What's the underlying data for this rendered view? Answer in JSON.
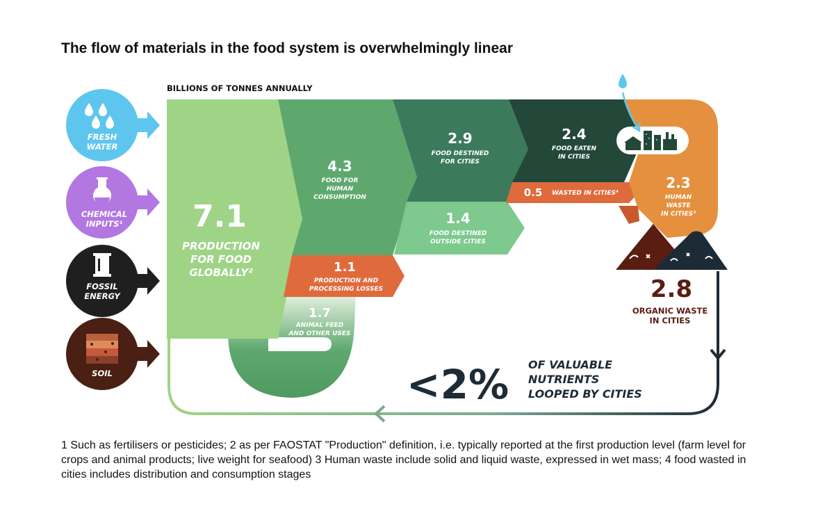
{
  "title": "The flow of materials in the food system is overwhelmingly linear",
  "units_label": "BILLIONS OF TONNES ANNUALLY",
  "inputs": [
    {
      "label_line1": "FRESH",
      "label_line2": "WATER",
      "icon": "water-drops-icon",
      "color": "#5ec6ee"
    },
    {
      "label_line1": "CHEMICAL",
      "label_line2": "INPUTS¹",
      "icon": "flask-icon",
      "color": "#b277e0"
    },
    {
      "label_line1": "FOSSIL",
      "label_line2": "ENERGY",
      "icon": "barrel-icon",
      "color": "#1f1f1f"
    },
    {
      "label_line1": "SOIL",
      "label_line2": "",
      "icon": "soil-layers-icon",
      "color": "#4a1f14"
    }
  ],
  "flows": {
    "production": {
      "value": "7.1",
      "line1": "PRODUCTION",
      "line2": "FOR FOOD",
      "line3": "GLOBALLY²",
      "color": "#9fd486"
    },
    "human_consumption": {
      "value": "4.3",
      "line1": "FOOD FOR",
      "line2": "HUMAN",
      "line3": "CONSUMPTION",
      "color": "#5ea86e"
    },
    "destined_cities": {
      "value": "2.9",
      "line1": "FOOD DESTINED",
      "line2": "FOR CITIES",
      "color": "#3c7a5c"
    },
    "eaten_cities": {
      "value": "2.4",
      "line1": "FOOD EATEN",
      "line2": "IN CITIES",
      "color": "#23483a"
    },
    "human_waste": {
      "value": "2.3",
      "line1": "HUMAN",
      "line2": "WASTE",
      "line3": "IN CITIES³",
      "color": "#e5903f"
    },
    "wasted_cities": {
      "value": "0.5",
      "label": "WASTED IN CITIES⁴",
      "color": "#df6a3c"
    },
    "outside_cities": {
      "value": "1.4",
      "line1": "FOOD DESTINED",
      "line2": "OUTSIDE CITIES",
      "color": "#7dc98e"
    },
    "losses": {
      "value": "1.1",
      "line1": "PRODUCTION AND",
      "line2": "PROCESSING LOSSES",
      "color": "#df6a3c"
    },
    "animal_feed": {
      "value": "1.7",
      "line1": "ANIMAL FEED",
      "line2": "AND OTHER USES",
      "color": "#5ea86e"
    }
  },
  "organic_waste": {
    "value": "2.8",
    "line1": "ORGANIC WASTE",
    "line2": "IN CITIES",
    "color": "#5a1d12"
  },
  "looped": {
    "value": "<2%",
    "line1": "OF VALUABLE",
    "line2": "NUTRIENTS",
    "line3": "LOOPED BY CITIES",
    "color": "#1d2b36"
  },
  "footnote": "1 Such as fertilisers or pesticides; 2 as per FAOSTAT \"Production\" definition, i.e. typically reported at the first production level (farm level for crops and animal products; live weight for seafood) 3 Human waste include solid and liquid waste, expressed in wet mass; 4 food wasted in cities includes distribution and consumption stages"
}
